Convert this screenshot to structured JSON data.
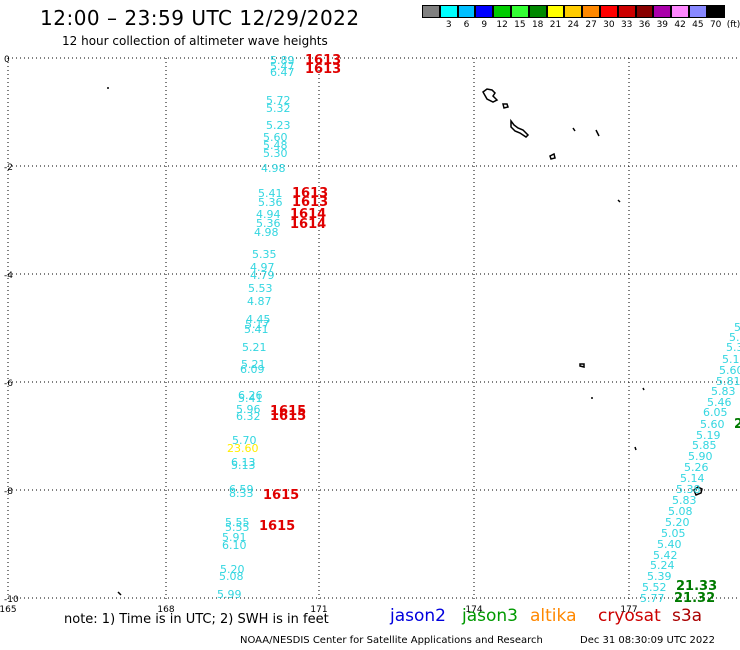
{
  "header": {
    "title": "12:00 – 23:59 UTC 12/29/2022",
    "subtitle": "12 hour collection of altimeter wave heights"
  },
  "legend": {
    "colors": [
      "#808080",
      "#00ffff",
      "#00bfff",
      "#0000ff",
      "#00cc00",
      "#33ff33",
      "#008800",
      "#ffff00",
      "#ffcc00",
      "#ff8800",
      "#ff0000",
      "#cc0000",
      "#880000",
      "#aa00aa",
      "#ff88ff",
      "#8888ff",
      "#000000"
    ],
    "labels": [
      "3",
      "6",
      "9",
      "12",
      "15",
      "18",
      "21",
      "24",
      "27",
      "30",
      "33",
      "36",
      "39",
      "42",
      "45",
      "70",
      "(ft)"
    ]
  },
  "map": {
    "lon_ticks": [
      "165",
      "168",
      "171",
      "174",
      "177"
    ],
    "lat_ticks": [
      "0",
      "-2",
      "-4",
      "-6",
      "-8",
      "-10"
    ]
  },
  "colors": {
    "cyan": "#33d6e0",
    "red": "#e00000",
    "yellow": "#ffee00",
    "green": "#007a00"
  },
  "track1": [
    {
      "t": "5.89",
      "c": "cyan"
    },
    {
      "t": "1613",
      "c": "red"
    },
    {
      "t": "5.47",
      "c": "cyan"
    },
    {
      "t": "1613",
      "c": "red"
    },
    {
      "t": "6.47",
      "c": "cyan"
    },
    {
      "t": "5.72",
      "c": "cyan"
    },
    {
      "t": "5.32",
      "c": "cyan"
    },
    {
      "t": "5.23",
      "c": "cyan"
    },
    {
      "t": "5.60",
      "c": "cyan"
    },
    {
      "t": "5.48",
      "c": "cyan"
    },
    {
      "t": "5.30",
      "c": "cyan"
    },
    {
      "t": "4.98",
      "c": "cyan"
    },
    {
      "t": "5.41",
      "c": "cyan"
    },
    {
      "t": "1613",
      "c": "red"
    },
    {
      "t": "5.36",
      "c": "cyan"
    },
    {
      "t": "1613",
      "c": "red"
    },
    {
      "t": "4.94",
      "c": "cyan"
    },
    {
      "t": "1614",
      "c": "red"
    },
    {
      "t": "5.36",
      "c": "cyan"
    },
    {
      "t": "1614",
      "c": "red"
    },
    {
      "t": "4.98",
      "c": "cyan"
    },
    {
      "t": "5.35",
      "c": "cyan"
    },
    {
      "t": "4.97",
      "c": "cyan"
    },
    {
      "t": "4.79",
      "c": "cyan"
    },
    {
      "t": "5.53",
      "c": "cyan"
    },
    {
      "t": "4.87",
      "c": "cyan"
    },
    {
      "t": "4.45",
      "c": "cyan"
    },
    {
      "t": "5.17",
      "c": "cyan"
    },
    {
      "t": "5.41",
      "c": "cyan"
    },
    {
      "t": "5.21",
      "c": "cyan"
    },
    {
      "t": "5.21",
      "c": "cyan"
    },
    {
      "t": "6.09",
      "c": "cyan"
    },
    {
      "t": "6.26",
      "c": "cyan"
    },
    {
      "t": "5.41",
      "c": "cyan"
    },
    {
      "t": "5.96",
      "c": "cyan"
    },
    {
      "t": "1615",
      "c": "red"
    },
    {
      "t": "6.32",
      "c": "cyan"
    },
    {
      "t": "1615",
      "c": "red"
    },
    {
      "t": "5.70",
      "c": "cyan"
    },
    {
      "t": "23.60",
      "c": "yellow"
    },
    {
      "t": "6.13",
      "c": "cyan"
    },
    {
      "t": "5.13",
      "c": "cyan"
    },
    {
      "t": "6.59",
      "c": "cyan"
    },
    {
      "t": "8.33",
      "c": "cyan"
    },
    {
      "t": "1615",
      "c": "red"
    },
    {
      "t": "5.55",
      "c": "cyan"
    },
    {
      "t": "1615",
      "c": "red"
    },
    {
      "t": "5.55",
      "c": "cyan"
    },
    {
      "t": "5.91",
      "c": "cyan"
    },
    {
      "t": "6.10",
      "c": "cyan"
    },
    {
      "t": "5.20",
      "c": "cyan"
    },
    {
      "t": "5.08",
      "c": "cyan"
    },
    {
      "t": "5.99",
      "c": "cyan"
    }
  ],
  "track2": [
    {
      "t": "5.77",
      "c": "cyan"
    },
    {
      "t": "21.32",
      "c": "green"
    },
    {
      "t": "5.52",
      "c": "cyan"
    },
    {
      "t": "21.33",
      "c": "green"
    },
    {
      "t": "5.39",
      "c": "cyan"
    },
    {
      "t": "5.24",
      "c": "cyan"
    },
    {
      "t": "5.42",
      "c": "cyan"
    },
    {
      "t": "5.40",
      "c": "cyan"
    },
    {
      "t": "5.05",
      "c": "cyan"
    },
    {
      "t": "5.20",
      "c": "cyan"
    },
    {
      "t": "5.08",
      "c": "cyan"
    },
    {
      "t": "5.83",
      "c": "cyan"
    },
    {
      "t": "5.38",
      "c": "cyan"
    },
    {
      "t": "5.14",
      "c": "cyan"
    },
    {
      "t": "5.26",
      "c": "cyan"
    },
    {
      "t": "5.90",
      "c": "cyan"
    },
    {
      "t": "5.85",
      "c": "cyan"
    },
    {
      "t": "5.19",
      "c": "cyan"
    },
    {
      "t": "5.60",
      "c": "cyan"
    },
    {
      "t": "2",
      "c": "green"
    },
    {
      "t": "6.05",
      "c": "cyan"
    },
    {
      "t": "5.46",
      "c": "cyan"
    },
    {
      "t": "5.83",
      "c": "cyan"
    },
    {
      "t": "5.81",
      "c": "cyan"
    },
    {
      "t": "5.60",
      "c": "cyan"
    },
    {
      "t": "5.1",
      "c": "cyan"
    },
    {
      "t": "5.3",
      "c": "cyan"
    },
    {
      "t": "5.",
      "c": "cyan"
    },
    {
      "t": "5",
      "c": "cyan"
    }
  ],
  "footer": {
    "note": "note: 1) Time is in UTC; 2) SWH is in feet",
    "satellites": [
      {
        "name": "jason2",
        "color": "#0000dd"
      },
      {
        "name": "jason3",
        "color": "#009900"
      },
      {
        "name": "altika",
        "color": "#ff8800"
      },
      {
        "name": "cryosat",
        "color": "#cc0000"
      },
      {
        "name": "s3a",
        "color": "#aa0000"
      }
    ],
    "credit": "NOAA/NESDIS Center for Satellite Applications and Research",
    "stamp": "Dec 31 08:30:09 UTC 2022"
  }
}
